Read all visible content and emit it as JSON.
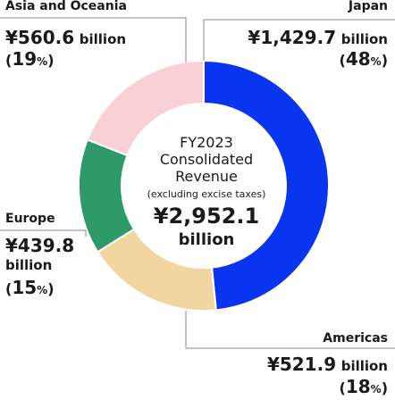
{
  "chart_data": {
    "type": "pie",
    "title": "FY2023 Consolidated Revenue",
    "subtitle": "(excluding excise taxes)",
    "total_value": "¥2,952.1",
    "total_unit": "billion",
    "slices": [
      {
        "name": "Japan",
        "value": 1429.7,
        "amount": "¥1,429.7",
        "unit": "billion",
        "percent": 48,
        "color": "#0a35f0"
      },
      {
        "name": "Americas",
        "value": 521.9,
        "amount": "¥521.9",
        "unit": "billion",
        "percent": 18,
        "color": "#f2d6a2"
      },
      {
        "name": "Europe",
        "value": 439.8,
        "amount": "¥439.8",
        "unit": "billion",
        "percent": 15,
        "color": "#2e9a6a"
      },
      {
        "name": "Asia and Oceania",
        "value": 560.6,
        "amount": "¥560.6",
        "unit": "billion",
        "percent": 19,
        "color": "#f8d0d6"
      }
    ]
  },
  "labels": {
    "center_line1": "FY2023",
    "center_line2": "Consolidated",
    "center_line3": "Revenue",
    "percent_symbol": "%"
  }
}
